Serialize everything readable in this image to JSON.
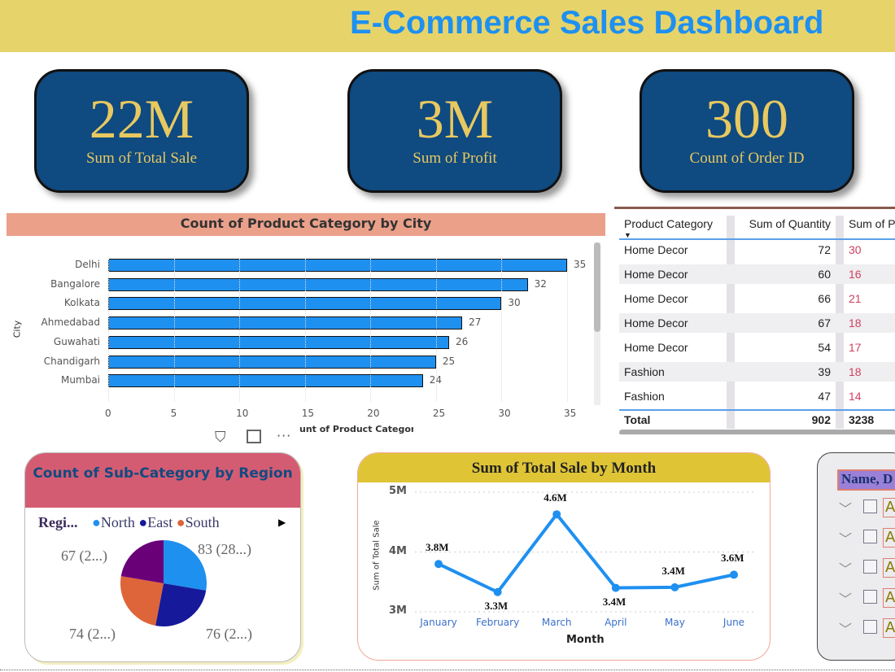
{
  "header": {
    "title": "E-Commerce Sales Dashboard"
  },
  "kpis": [
    {
      "value": "22M",
      "label": "Sum of Total Sale"
    },
    {
      "value": "3M",
      "label": "Sum of Profit"
    },
    {
      "value": "300",
      "label": "Count of Order ID"
    }
  ],
  "table": {
    "headers": [
      "Product Category",
      "Sum of Quantity",
      "Sum of P"
    ],
    "rows": [
      [
        "Home Decor",
        "72",
        "30"
      ],
      [
        "Home Decor",
        "60",
        "16"
      ],
      [
        "Home Decor",
        "66",
        "21"
      ],
      [
        "Home Decor",
        "67",
        "18"
      ],
      [
        "Home Decor",
        "54",
        "17"
      ],
      [
        "Fashion",
        "39",
        "18"
      ],
      [
        "Fashion",
        "47",
        "14"
      ]
    ],
    "total": [
      "Total",
      "902",
      "3238"
    ]
  },
  "visual_header_icons": [
    "filter-icon",
    "focus-mode-icon",
    "more-options-icon"
  ],
  "slicer": {
    "header": "Name, D",
    "items": [
      "A",
      "A",
      "A",
      "A",
      "A"
    ]
  },
  "colors": {
    "bar": "#1e90f0",
    "north": "#1e90f0",
    "east": "#16199a",
    "south": "#de643a",
    "other": "#6a0078",
    "kpi_bg": "#0f4a80",
    "kpi_text": "#e8c860"
  },
  "chart_data": [
    {
      "type": "bar",
      "orientation": "horizontal",
      "title": "Count of Product Category by City",
      "xlabel": "unt of Product Category",
      "ylabel": "City",
      "categories": [
        "Delhi",
        "Bangalore",
        "Kolkata",
        "Ahmedabad",
        "Guwahati",
        "Chandigarh",
        "Mumbai"
      ],
      "values": [
        35,
        32,
        30,
        27,
        26,
        25,
        24
      ],
      "xlim": [
        0,
        35
      ],
      "xticks": [
        "0",
        "5",
        "10",
        "15",
        "20",
        "25",
        "30",
        "35"
      ]
    },
    {
      "type": "pie",
      "title": "Count of Sub-Category by Region",
      "legend_title": "Regi...",
      "legend": [
        "North",
        "East",
        "South"
      ],
      "values": [
        83,
        76,
        74,
        67
      ],
      "labels": [
        "83 (28...)",
        "76 (2...)",
        "74 (2...)",
        "67 (2...)"
      ]
    },
    {
      "type": "line",
      "title": "Sum of Total Sale by Month",
      "xlabel": "Month",
      "ylabel": "Sum of Total Sale",
      "categories": [
        "January",
        "February",
        "March",
        "April",
        "May",
        "June"
      ],
      "values": [
        3.8,
        3.33,
        4.63,
        3.4,
        3.41,
        3.62
      ],
      "labels": [
        "3.8M",
        "3.3M",
        "4.6M",
        "3.4M",
        "3.4M",
        "3.6M"
      ],
      "ylim": [
        3,
        5
      ],
      "yticks": [
        "3M",
        "4M",
        "5M"
      ],
      "grid": true
    }
  ]
}
